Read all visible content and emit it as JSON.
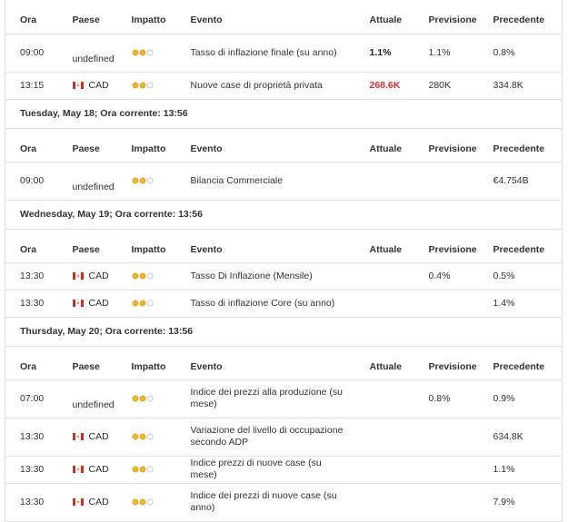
{
  "columns": [
    "Ora",
    "Paese",
    "Impatto",
    "Evento",
    "Attuale",
    "Previsione",
    "Precedente"
  ],
  "impact_max": 3,
  "sections": [
    {
      "title": null,
      "rows": [
        {
          "time": "09:00",
          "country": "undefined",
          "impact": 2,
          "event": "Tasso di inflazione finale (su anno)",
          "actual": "1.1%",
          "actual_color": "#222222",
          "forecast": "1.1%",
          "previous": "0.8%"
        },
        {
          "time": "13:15",
          "country": "CAD",
          "impact": 2,
          "event": "Nuove case di proprietà privata",
          "actual": "268.6K",
          "actual_color": "#d32f2f",
          "forecast": "280K",
          "previous": "334.8K"
        }
      ]
    },
    {
      "title": "Tuesday, May 18; Ora corrente: 13:56",
      "rows": [
        {
          "time": "09:00",
          "country": "undefined",
          "impact": 2,
          "event": "Bilancia Commerciale",
          "actual": null,
          "forecast": null,
          "previous": "€4.754B"
        }
      ]
    },
    {
      "title": "Wednesday, May 19; Ora corrente: 13:56",
      "rows": [
        {
          "time": "13:30",
          "country": "CAD",
          "impact": 2,
          "event": "Tasso Di Inflazione (Mensile)",
          "actual": null,
          "forecast": "0.4%",
          "previous": "0.5%"
        },
        {
          "time": "13:30",
          "country": "CAD",
          "impact": 2,
          "event": "Tasso di inflazione Core (su anno)",
          "actual": null,
          "forecast": null,
          "previous": "1.4%"
        }
      ]
    },
    {
      "title": "Thursday, May 20; Ora corrente: 13:56",
      "rows": [
        {
          "time": "07:00",
          "country": "undefined",
          "impact": 2,
          "event": "Indice dei prezzi alla produzione (su mese)",
          "actual": null,
          "forecast": "0.8%",
          "previous": "0.9%"
        },
        {
          "time": "13:30",
          "country": "CAD",
          "impact": 2,
          "event": "Variazione del livello di occupazione secondo ADP",
          "actual": null,
          "forecast": null,
          "previous": "634.8K"
        },
        {
          "time": "13:30",
          "country": "CAD",
          "impact": 2,
          "event": "Indice prezzi di nuove case (su mese)",
          "actual": null,
          "forecast": null,
          "previous": "1.1%"
        },
        {
          "time": "13:30",
          "country": "CAD",
          "impact": 2,
          "event": "Indice dei prezzi di nuove case (su anno)",
          "actual": null,
          "forecast": null,
          "previous": "7.9%"
        }
      ]
    }
  ]
}
